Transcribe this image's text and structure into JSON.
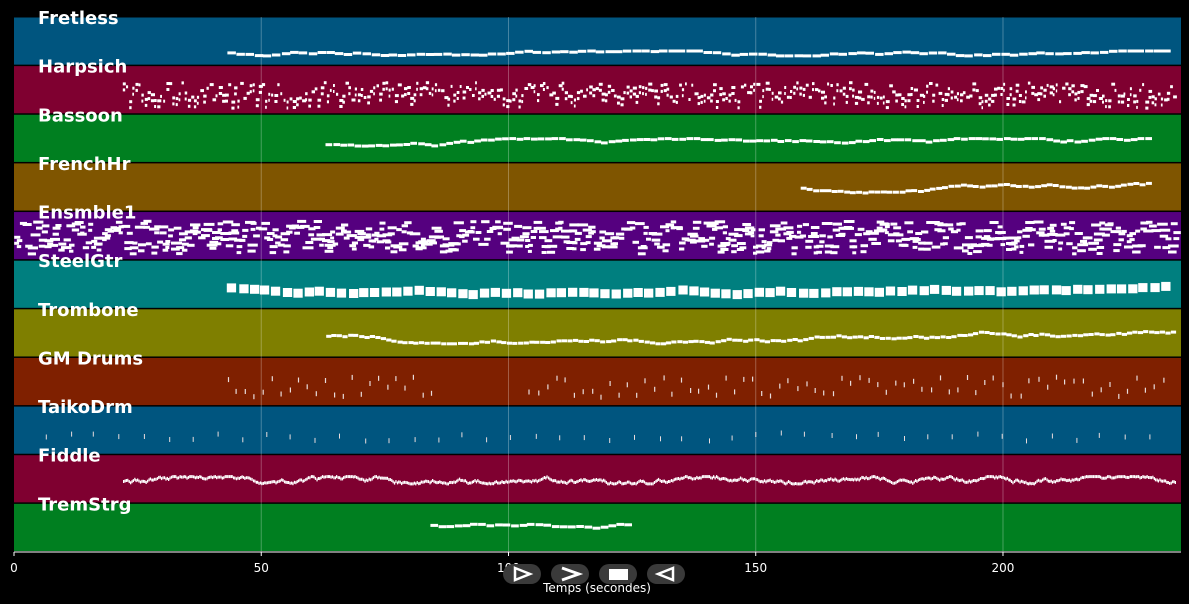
{
  "chart_data": {
    "type": "piano-roll",
    "title": "",
    "xlabel": "Temps (secondes)",
    "ylabel": "",
    "xlim": [
      0,
      236
    ],
    "xticks": [
      0,
      50,
      100,
      150,
      200
    ],
    "grid": true,
    "legend": "none",
    "tracks": [
      {
        "name": "Fretless",
        "color": "#00557f",
        "active": [
          [
            43,
            234
          ]
        ],
        "density": 0.55,
        "note_len": 2.2,
        "pitch_band": [
          0.7,
          0.8
        ],
        "style": "line"
      },
      {
        "name": "Harpsich",
        "color": "#7f0030",
        "active": [
          [
            22,
            235
          ]
        ],
        "density": 1.6,
        "note_len": 0.6,
        "pitch_band": [
          0.35,
          0.75
        ],
        "style": "dense"
      },
      {
        "name": "Bassoon",
        "color": "#007f20",
        "active": [
          [
            63,
            230
          ]
        ],
        "density": 0.7,
        "note_len": 1.8,
        "pitch_band": [
          0.5,
          0.7
        ],
        "style": "line"
      },
      {
        "name": "FrenchHr",
        "color": "#7f5500",
        "active": [
          [
            159,
            230
          ]
        ],
        "density": 0.8,
        "note_len": 1.6,
        "pitch_band": [
          0.4,
          0.62
        ],
        "style": "line"
      },
      {
        "name": "Ensmble1",
        "color": "#55007f",
        "active": [
          [
            0,
            235
          ]
        ],
        "density": 1.8,
        "note_len": 1.6,
        "pitch_band": [
          0.2,
          0.75
        ],
        "style": "dense"
      },
      {
        "name": "SteelGtr",
        "color": "#007f7f",
        "active": [
          [
            43,
            234
          ]
        ],
        "density": 0.45,
        "note_len": 2.0,
        "pitch_band": [
          0.45,
          0.72
        ],
        "style": "blocks"
      },
      {
        "name": "Trombone",
        "color": "#7f7f00",
        "active": [
          [
            63,
            235
          ]
        ],
        "density": 0.9,
        "note_len": 1.7,
        "pitch_band": [
          0.38,
          0.72
        ],
        "style": "line"
      },
      {
        "name": "GM Drums",
        "color": "#7f2000",
        "active": [
          [
            43,
            86
          ],
          [
            104,
            234
          ]
        ],
        "density": 0.55,
        "note_len": 0.25,
        "pitch_band": [
          0.4,
          0.82
        ],
        "style": "ticks"
      },
      {
        "name": "TaikoDrm",
        "color": "#00557f",
        "active": [
          [
            6,
            234
          ]
        ],
        "density": 0.2,
        "note_len": 0.2,
        "pitch_band": [
          0.55,
          0.72
        ],
        "style": "ticks"
      },
      {
        "name": "Fiddle",
        "color": "#7f0030",
        "active": [
          [
            22,
            235
          ]
        ],
        "density": 3.5,
        "note_len": 0.35,
        "pitch_band": [
          0.45,
          0.6
        ],
        "style": "line"
      },
      {
        "name": "TremStrg",
        "color": "#007f20",
        "active": [
          [
            84,
            125
          ]
        ],
        "density": 0.6,
        "note_len": 2.5,
        "pitch_band": [
          0.4,
          0.55
        ],
        "style": "line"
      }
    ]
  },
  "controls": [
    {
      "id": "play",
      "icon": "play-icon"
    },
    {
      "id": "forward",
      "icon": "forward-icon"
    },
    {
      "id": "stop",
      "icon": "stop-icon"
    },
    {
      "id": "rewind",
      "icon": "rewind-icon"
    }
  ]
}
